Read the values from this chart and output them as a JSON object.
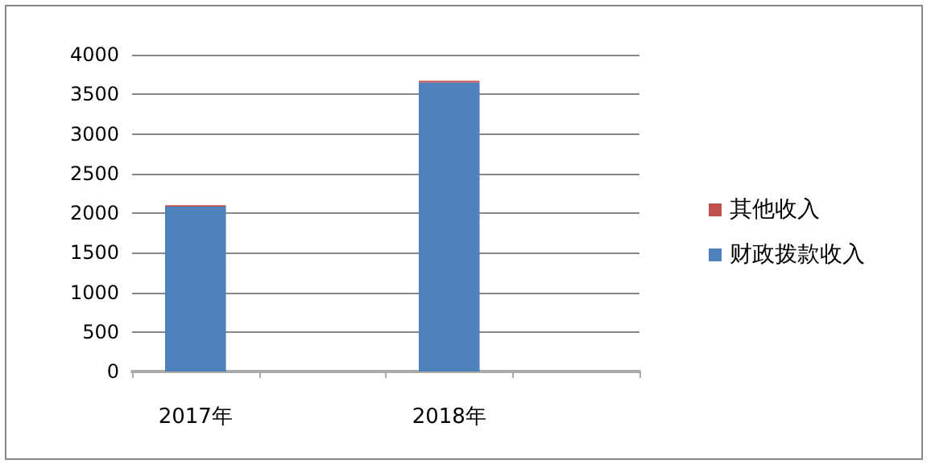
{
  "chart_data": {
    "type": "bar",
    "stacked": true,
    "categories": [
      "2017年",
      null,
      "2018年",
      null
    ],
    "series": [
      {
        "name": "财政拨款收入",
        "color": "#4f81bd",
        "values": [
          2080,
          null,
          3650,
          null
        ]
      },
      {
        "name": "其他收入",
        "color": "#c0504d",
        "values": [
          20,
          null,
          20,
          null
        ]
      }
    ],
    "ylim": [
      0,
      4000
    ],
    "yticks": [
      0,
      500,
      1000,
      1500,
      2000,
      2500,
      3000,
      3500,
      4000
    ],
    "grid": "y",
    "legend": "right"
  }
}
